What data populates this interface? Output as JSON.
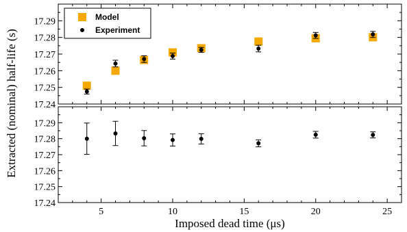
{
  "chart_data": [
    {
      "type": "scatter",
      "panel": "top",
      "xlim": [
        2,
        26
      ],
      "ylim": [
        17.24,
        17.3
      ],
      "yticks": [
        "17.24",
        "17.25",
        "17.26",
        "17.27",
        "17.28",
        "17.29"
      ],
      "legend": {
        "placement": "top-left"
      },
      "series": [
        {
          "name": "Model",
          "marker": "square",
          "color": "#f5a800",
          "x": [
            4,
            6,
            8,
            10,
            12,
            16,
            20,
            24
          ],
          "y": [
            17.251,
            17.26,
            17.2665,
            17.271,
            17.2735,
            17.2775,
            17.2795,
            17.2801
          ]
        },
        {
          "name": "Experiment",
          "marker": "circle",
          "color": "#000000",
          "x": [
            4,
            6,
            8,
            10,
            12,
            16,
            20,
            24
          ],
          "y": [
            17.2475,
            17.2643,
            17.267,
            17.2688,
            17.2725,
            17.2733,
            17.2812,
            17.2818
          ],
          "err": [
            0.0015,
            0.002,
            0.002,
            0.0018,
            0.0015,
            0.002,
            0.0018,
            0.0018
          ]
        }
      ]
    },
    {
      "type": "scatter",
      "panel": "bottom",
      "xlim": [
        2,
        26
      ],
      "ylim": [
        17.24,
        17.3
      ],
      "yticks": [
        "17.24",
        "17.25",
        "17.26",
        "17.27",
        "17.28",
        "17.29"
      ],
      "series": [
        {
          "name": "Experiment",
          "marker": "circle",
          "color": "#000000",
          "x": [
            4,
            6,
            8,
            10,
            12,
            16,
            20,
            24
          ],
          "y": [
            17.28,
            17.2833,
            17.2803,
            17.2792,
            17.2799,
            17.2771,
            17.2825,
            17.2824
          ],
          "err": [
            0.0098,
            0.0076,
            0.0048,
            0.0038,
            0.0032,
            0.0022,
            0.0021,
            0.0019
          ]
        }
      ]
    }
  ],
  "axes": {
    "xlabel": "Imposed dead time (μs)",
    "ylabel": "Extracted (nominal) half-life (s)",
    "xticks": [
      "5",
      "10",
      "15",
      "20",
      "25"
    ]
  }
}
